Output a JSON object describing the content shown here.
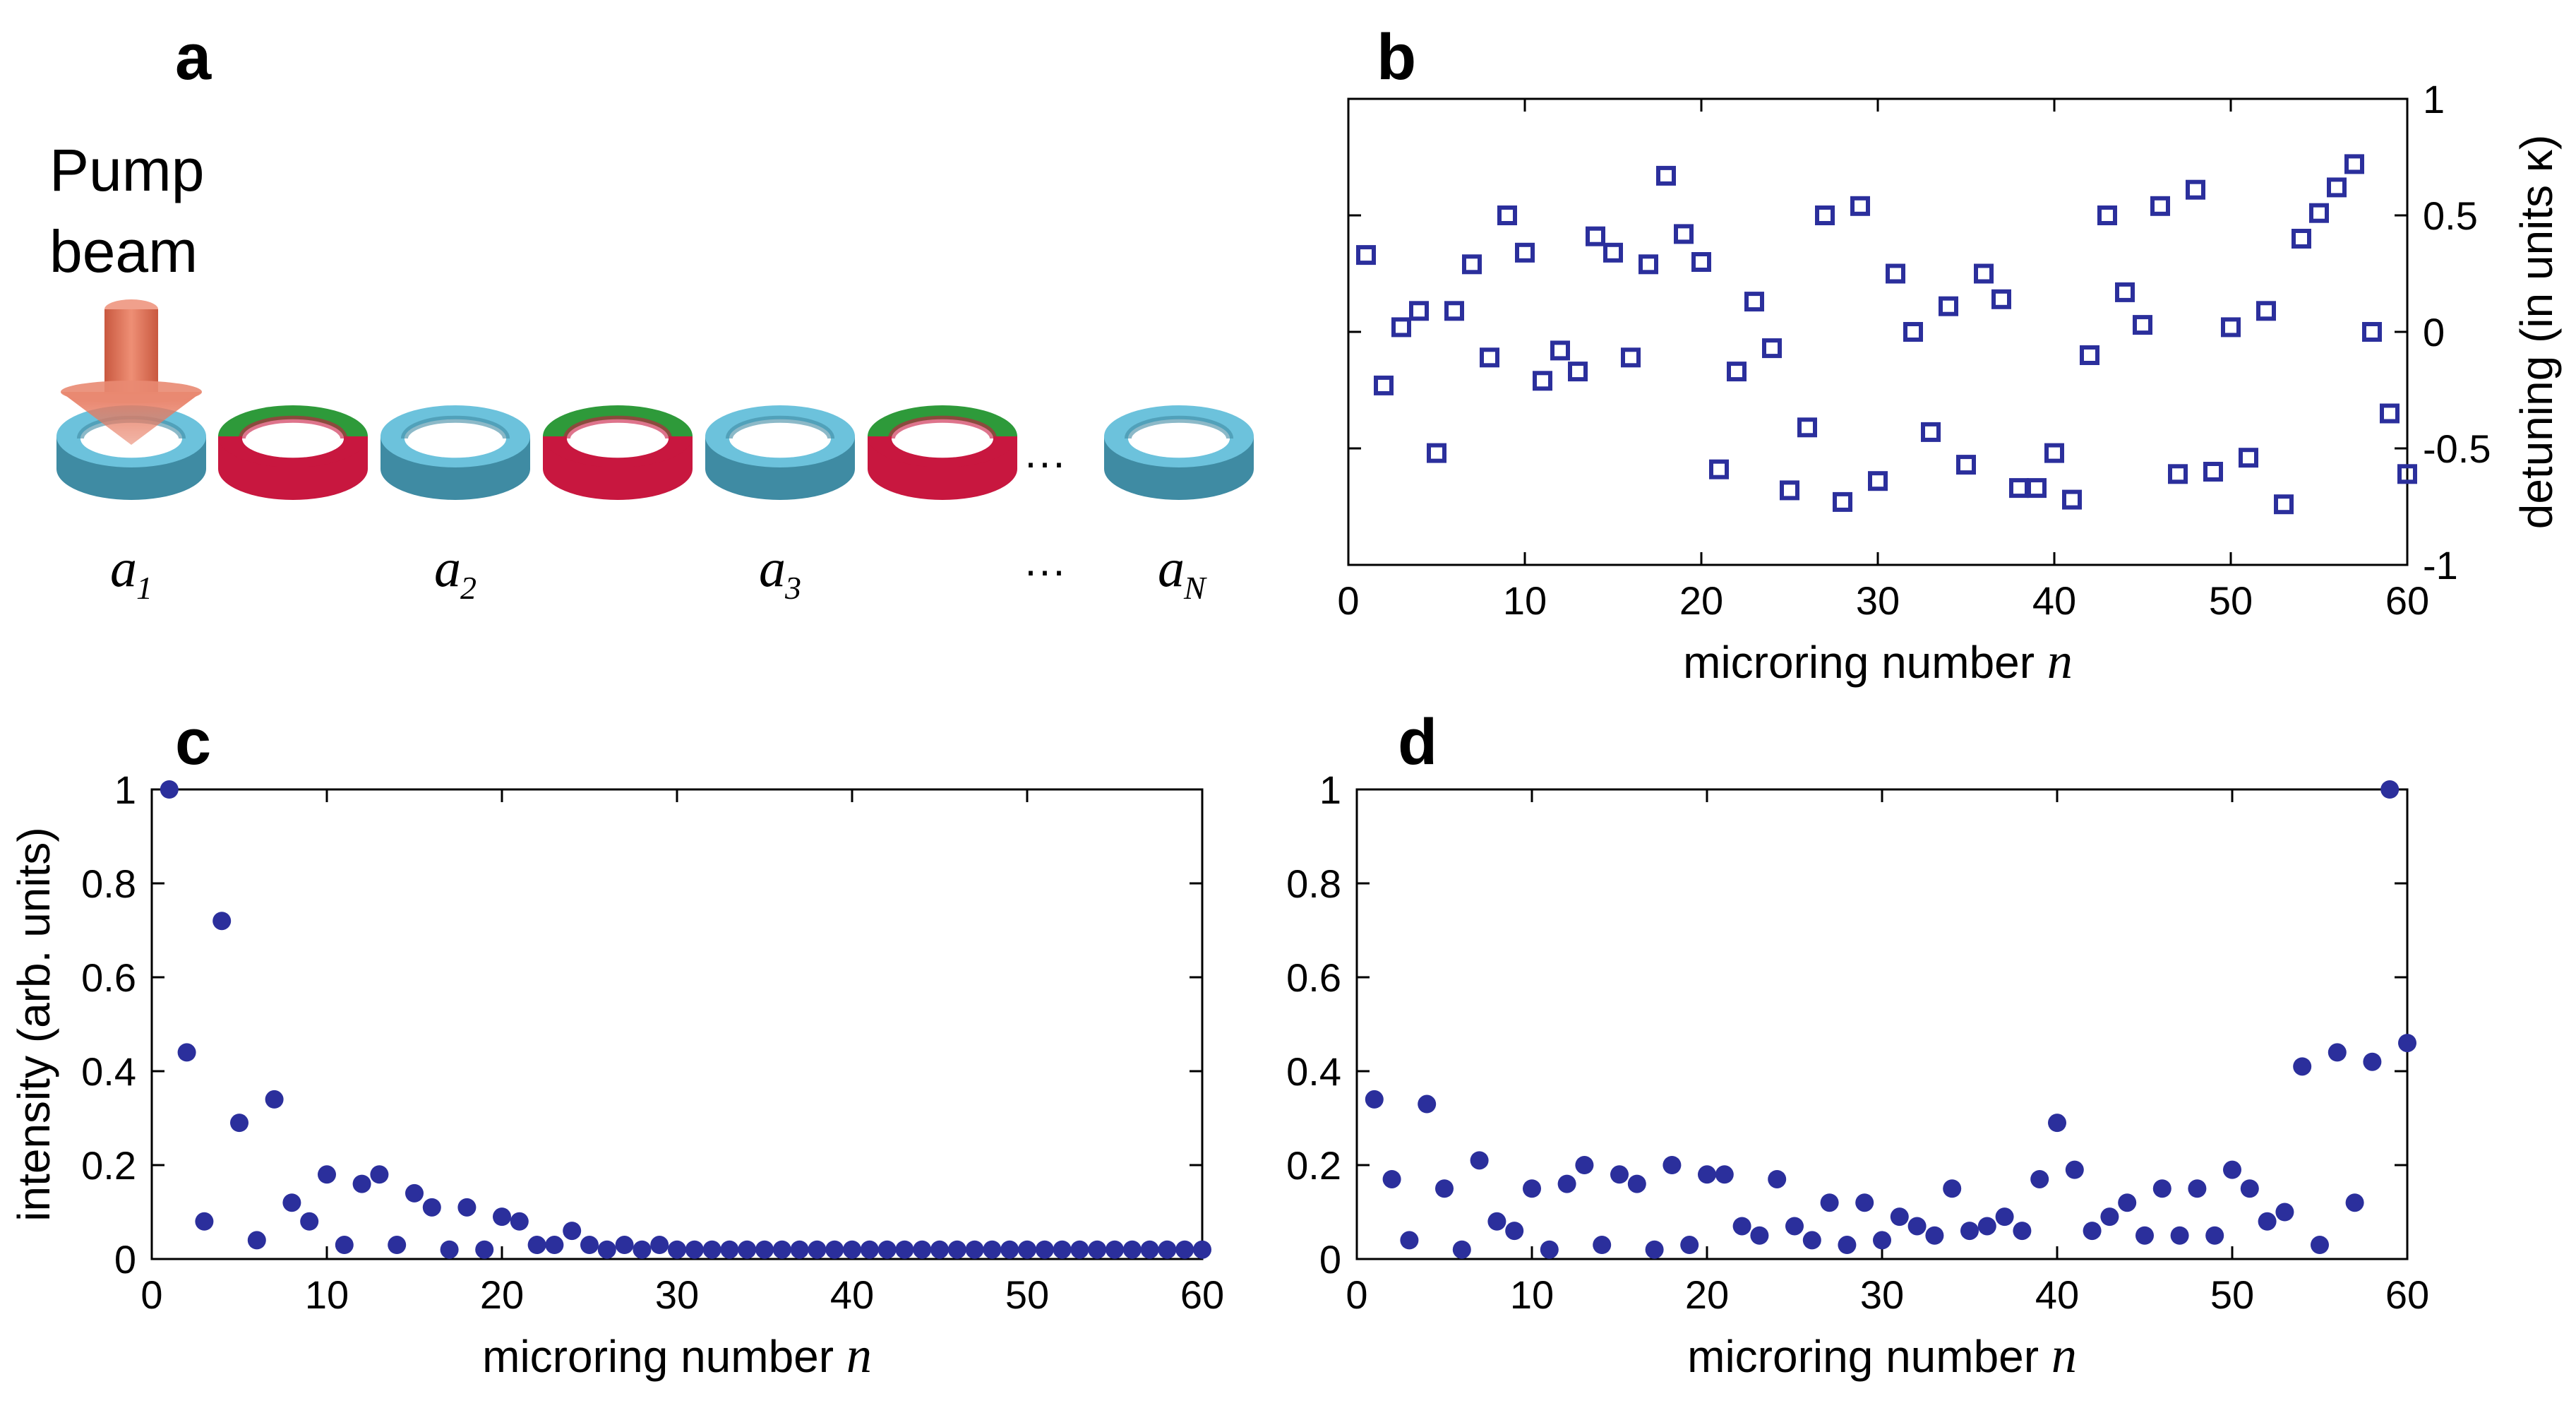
{
  "panels": {
    "a": {
      "letter": "a"
    },
    "b": {
      "letter": "b"
    },
    "c": {
      "letter": "c"
    },
    "d": {
      "letter": "d"
    }
  },
  "diagram": {
    "pump_label_line1": "Pump",
    "pump_label_line2": "beam",
    "ellipsis": "···",
    "ring_labels": [
      {
        "base": "a",
        "sub": "1"
      },
      {
        "base": "a",
        "sub": "2"
      },
      {
        "base": "a",
        "sub": "3"
      },
      {
        "base": "a",
        "sub": "N"
      }
    ],
    "colors": {
      "site_ring": "#6cc2dc",
      "site_ring_side": "#3f8ba3",
      "link_top": "#2e9a3a",
      "link_bottom": "#c8173f",
      "pump": "#e77a60"
    }
  },
  "chart_data": [
    {
      "id": "b",
      "type": "scatter",
      "marker": "open-square",
      "color": "#2b2f9c",
      "xlabel_prefix": "microring number ",
      "xlabel_var": "n",
      "ylabel": "detuning (in units κ)",
      "y_axis_side": "right",
      "xlim": [
        0,
        60
      ],
      "ylim": [
        -1,
        1
      ],
      "xticks": [
        0,
        10,
        20,
        30,
        40,
        50,
        60
      ],
      "yticks": [
        1,
        0.5,
        0,
        -0.5,
        -1
      ],
      "x": [
        1,
        2,
        3,
        4,
        5,
        6,
        7,
        8,
        9,
        10,
        11,
        12,
        13,
        14,
        15,
        16,
        17,
        18,
        19,
        20,
        21,
        22,
        23,
        24,
        25,
        26,
        27,
        28,
        29,
        30,
        31,
        32,
        33,
        34,
        35,
        36,
        37,
        38,
        39,
        40,
        41,
        42,
        43,
        44,
        45,
        46,
        47,
        48,
        49,
        50,
        51,
        52,
        53,
        54,
        55,
        56,
        57,
        58,
        59,
        60
      ],
      "y": [
        0.33,
        -0.23,
        0.02,
        0.09,
        -0.52,
        0.09,
        0.29,
        -0.11,
        0.5,
        0.34,
        -0.21,
        -0.08,
        -0.17,
        0.41,
        0.34,
        -0.11,
        0.29,
        0.67,
        0.42,
        0.3,
        -0.59,
        -0.17,
        0.13,
        -0.07,
        -0.68,
        -0.41,
        0.5,
        -0.73,
        0.54,
        -0.64,
        0.25,
        0.0,
        -0.43,
        0.11,
        -0.57,
        0.25,
        0.14,
        -0.67,
        -0.67,
        -0.52,
        -0.72,
        -0.1,
        0.5,
        0.17,
        0.03,
        0.54,
        -0.61,
        0.61,
        -0.6,
        0.02,
        -0.54,
        0.09,
        -0.74,
        0.4,
        0.51,
        0.62,
        0.72,
        0.0,
        -0.35,
        -0.61
      ]
    },
    {
      "id": "c",
      "type": "scatter",
      "marker": "filled-circle",
      "color": "#2b2f9c",
      "xlabel_prefix": "microring number ",
      "xlabel_var": "n",
      "ylabel": "intensity (arb. units)",
      "y_axis_side": "left",
      "xlim": [
        0,
        60
      ],
      "ylim": [
        0,
        1
      ],
      "xticks": [
        0,
        10,
        20,
        30,
        40,
        50,
        60
      ],
      "yticks": [
        0,
        0.2,
        0.4,
        0.6,
        0.8,
        1
      ],
      "x": [
        1,
        2,
        3,
        4,
        5,
        6,
        7,
        8,
        9,
        10,
        11,
        12,
        13,
        14,
        15,
        16,
        17,
        18,
        19,
        20,
        21,
        22,
        23,
        24,
        25,
        26,
        27,
        28,
        29,
        30,
        31,
        32,
        33,
        34,
        35,
        36,
        37,
        38,
        39,
        40,
        41,
        42,
        43,
        44,
        45,
        46,
        47,
        48,
        49,
        50,
        51,
        52,
        53,
        54,
        55,
        56,
        57,
        58,
        59,
        60
      ],
      "y": [
        1.0,
        0.44,
        0.08,
        0.72,
        0.29,
        0.04,
        0.34,
        0.12,
        0.08,
        0.18,
        0.03,
        0.16,
        0.18,
        0.03,
        0.14,
        0.11,
        0.02,
        0.11,
        0.02,
        0.09,
        0.08,
        0.03,
        0.03,
        0.06,
        0.03,
        0.02,
        0.03,
        0.02,
        0.03,
        0.02,
        0.02,
        0.02,
        0.02,
        0.02,
        0.02,
        0.02,
        0.02,
        0.02,
        0.02,
        0.02,
        0.02,
        0.02,
        0.02,
        0.02,
        0.02,
        0.02,
        0.02,
        0.02,
        0.02,
        0.02,
        0.02,
        0.02,
        0.02,
        0.02,
        0.02,
        0.02,
        0.02,
        0.02,
        0.02,
        0.02
      ]
    },
    {
      "id": "d",
      "type": "scatter",
      "marker": "filled-circle",
      "color": "#2b2f9c",
      "xlabel_prefix": "microring number ",
      "xlabel_var": "n",
      "ylabel": "",
      "y_axis_side": "left",
      "xlim": [
        0,
        60
      ],
      "ylim": [
        0,
        1
      ],
      "xticks": [
        0,
        10,
        20,
        30,
        40,
        50,
        60
      ],
      "yticks": [
        0,
        0.2,
        0.4,
        0.6,
        0.8,
        1
      ],
      "x": [
        1,
        2,
        3,
        4,
        5,
        6,
        7,
        8,
        9,
        10,
        11,
        12,
        13,
        14,
        15,
        16,
        17,
        18,
        19,
        20,
        21,
        22,
        23,
        24,
        25,
        26,
        27,
        28,
        29,
        30,
        31,
        32,
        33,
        34,
        35,
        36,
        37,
        38,
        39,
        40,
        41,
        42,
        43,
        44,
        45,
        46,
        47,
        48,
        49,
        50,
        51,
        52,
        53,
        54,
        55,
        56,
        57,
        58,
        59,
        60
      ],
      "y": [
        0.34,
        0.17,
        0.04,
        0.33,
        0.15,
        0.02,
        0.21,
        0.08,
        0.06,
        0.15,
        0.02,
        0.16,
        0.2,
        0.03,
        0.18,
        0.16,
        0.02,
        0.2,
        0.03,
        0.18,
        0.18,
        0.07,
        0.05,
        0.17,
        0.07,
        0.04,
        0.12,
        0.03,
        0.12,
        0.04,
        0.09,
        0.07,
        0.05,
        0.15,
        0.06,
        0.07,
        0.09,
        0.06,
        0.17,
        0.29,
        0.19,
        0.06,
        0.09,
        0.12,
        0.05,
        0.15,
        0.05,
        0.15,
        0.05,
        0.19,
        0.15,
        0.08,
        0.1,
        0.41,
        0.03,
        0.44,
        0.12,
        0.42,
        1.0,
        0.46
      ]
    }
  ]
}
